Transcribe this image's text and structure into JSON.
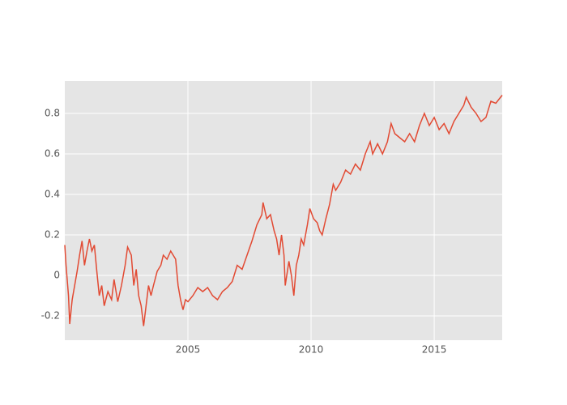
{
  "chart_data": {
    "type": "line",
    "color": "#e24a33",
    "grid": true,
    "xlim": [
      2000,
      2017.76
    ],
    "xticks": [
      2005,
      2010,
      2015
    ],
    "ylim": [
      -0.32,
      0.96
    ],
    "yticks": [
      -0.2,
      0,
      0.2,
      0.4,
      0.6,
      0.8
    ],
    "x": [
      2000.0,
      2000.05,
      2000.15,
      2000.2,
      2000.3,
      2000.4,
      2000.5,
      2000.6,
      2000.7,
      2000.8,
      2000.9,
      2001.0,
      2001.1,
      2001.2,
      2001.3,
      2001.4,
      2001.5,
      2001.6,
      2001.75,
      2001.9,
      2002.0,
      2002.15,
      2002.3,
      2002.45,
      2002.55,
      2002.7,
      2002.8,
      2002.9,
      2003.0,
      2003.1,
      2003.2,
      2003.3,
      2003.4,
      2003.5,
      2003.6,
      2003.75,
      2003.9,
      2004.0,
      2004.15,
      2004.3,
      2004.5,
      2004.6,
      2004.7,
      2004.8,
      2004.9,
      2005.0,
      2005.2,
      2005.4,
      2005.6,
      2005.8,
      2006.0,
      2006.2,
      2006.4,
      2006.6,
      2006.8,
      2007.0,
      2007.2,
      2007.4,
      2007.6,
      2007.8,
      2008.0,
      2008.05,
      2008.2,
      2008.35,
      2008.5,
      2008.6,
      2008.7,
      2008.8,
      2008.9,
      2008.95,
      2009.1,
      2009.2,
      2009.3,
      2009.4,
      2009.5,
      2009.6,
      2009.7,
      2009.85,
      2009.95,
      2010.1,
      2010.25,
      2010.35,
      2010.45,
      2010.6,
      2010.75,
      2010.9,
      2011.0,
      2011.2,
      2011.4,
      2011.6,
      2011.8,
      2012.0,
      2012.2,
      2012.4,
      2012.5,
      2012.7,
      2012.9,
      2013.1,
      2013.25,
      2013.4,
      2013.6,
      2013.8,
      2014.0,
      2014.2,
      2014.4,
      2014.6,
      2014.8,
      2015.0,
      2015.2,
      2015.4,
      2015.6,
      2015.8,
      2016.0,
      2016.2,
      2016.3,
      2016.5,
      2016.7,
      2016.9,
      2017.1,
      2017.3,
      2017.5,
      2017.76
    ],
    "values": [
      0.15,
      0.05,
      -0.1,
      -0.24,
      -0.12,
      -0.05,
      0.02,
      0.1,
      0.17,
      0.05,
      0.12,
      0.18,
      0.12,
      0.15,
      0.02,
      -0.1,
      -0.05,
      -0.15,
      -0.08,
      -0.12,
      -0.02,
      -0.13,
      -0.05,
      0.05,
      0.14,
      0.1,
      -0.05,
      0.03,
      -0.1,
      -0.15,
      -0.25,
      -0.15,
      -0.05,
      -0.1,
      -0.05,
      0.02,
      0.05,
      0.1,
      0.08,
      0.12,
      0.08,
      -0.05,
      -0.12,
      -0.17,
      -0.12,
      -0.13,
      -0.1,
      -0.06,
      -0.08,
      -0.06,
      -0.1,
      -0.12,
      -0.08,
      -0.06,
      -0.03,
      0.05,
      0.03,
      0.1,
      0.17,
      0.25,
      0.3,
      0.36,
      0.28,
      0.3,
      0.22,
      0.18,
      0.1,
      0.2,
      0.1,
      -0.05,
      0.07,
      0.0,
      -0.1,
      0.05,
      0.1,
      0.18,
      0.15,
      0.25,
      0.33,
      0.28,
      0.26,
      0.22,
      0.2,
      0.28,
      0.35,
      0.45,
      0.42,
      0.46,
      0.52,
      0.5,
      0.55,
      0.52,
      0.6,
      0.66,
      0.6,
      0.65,
      0.6,
      0.66,
      0.75,
      0.7,
      0.68,
      0.66,
      0.7,
      0.66,
      0.74,
      0.8,
      0.74,
      0.78,
      0.72,
      0.75,
      0.7,
      0.76,
      0.8,
      0.84,
      0.88,
      0.83,
      0.8,
      0.76,
      0.78,
      0.86,
      0.85,
      0.89
    ]
  }
}
